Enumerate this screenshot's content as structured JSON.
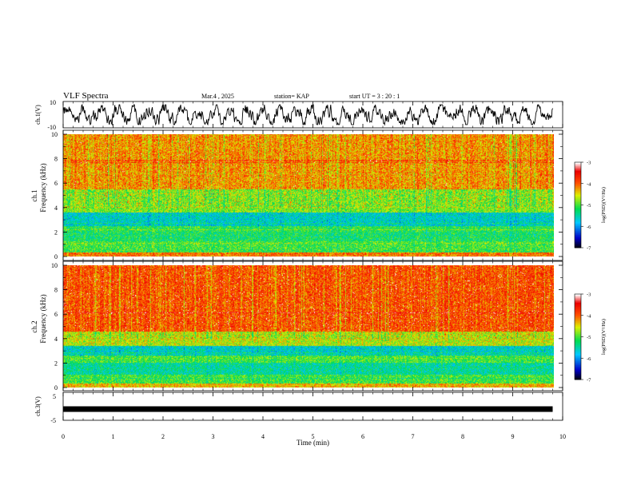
{
  "header": {
    "title": "VLF Spectra",
    "date": "Mar.4 , 2025",
    "station": "station= KAP",
    "start_ut": "start UT = 3 : 20 : 1"
  },
  "chart_data": [
    {
      "id": "ch1_waveform",
      "type": "line",
      "ylabel": "ch.1(V)",
      "ylim": [
        -10,
        10
      ],
      "yticks": [
        "10",
        "-10"
      ],
      "x_range_min": [
        0,
        9.8
      ],
      "description_values": "noisy waveform oscillating roughly between -7 and +7 V",
      "color": "#000000"
    },
    {
      "id": "ch1_spectrogram",
      "type": "heatmap",
      "ylabel": "ch.1\nFrequency (kHz)",
      "ylim": [
        0,
        10
      ],
      "yticks": [
        "0",
        "2",
        "4",
        "6",
        "8",
        "10"
      ],
      "x_range_min": [
        0,
        9.8
      ],
      "bands": [
        {
          "from": 0.0,
          "to": 0.3,
          "level": -4.0
        },
        {
          "from": 0.3,
          "to": 1.2,
          "level": -5.0
        },
        {
          "from": 1.2,
          "to": 2.0,
          "level": -5.2
        },
        {
          "from": 2.0,
          "to": 2.5,
          "level": -5.1
        },
        {
          "from": 2.5,
          "to": 3.6,
          "level": -5.6
        },
        {
          "from": 3.6,
          "to": 5.5,
          "level": -4.8
        },
        {
          "from": 5.5,
          "to": 10.0,
          "level": -4.2
        }
      ],
      "colorbar": {
        "label": "log(PSD)(V²/Hz)",
        "min": -7,
        "max": -3,
        "ticks": [
          "-3",
          "-4",
          "-5",
          "-6",
          "-7"
        ]
      }
    },
    {
      "id": "ch2_spectrogram",
      "type": "heatmap",
      "ylabel": "ch.2\nFrequency (kHz)",
      "ylim": [
        0,
        10
      ],
      "yticks": [
        "0",
        "2",
        "4",
        "6",
        "8",
        "10"
      ],
      "x_range_min": [
        0,
        9.8
      ],
      "bands": [
        {
          "from": 0.0,
          "to": 0.3,
          "level": -4.3
        },
        {
          "from": 0.3,
          "to": 1.0,
          "level": -5.0
        },
        {
          "from": 1.0,
          "to": 2.0,
          "level": -5.4
        },
        {
          "from": 2.0,
          "to": 2.6,
          "level": -5.0
        },
        {
          "from": 2.6,
          "to": 3.4,
          "level": -5.6
        },
        {
          "from": 3.4,
          "to": 4.6,
          "level": -4.6
        },
        {
          "from": 4.6,
          "to": 10.0,
          "level": -3.9
        }
      ],
      "colorbar": {
        "label": "log(PSD)(V²/Hz)",
        "min": -7,
        "max": -3,
        "ticks": [
          "-3",
          "-4",
          "-5",
          "-6",
          "-7"
        ]
      }
    },
    {
      "id": "ch3_waveform",
      "type": "line",
      "ylabel": "ch.3(V)",
      "ylim": [
        -5,
        5
      ],
      "yticks": [
        "5",
        "-5"
      ],
      "x_range_min": [
        0,
        9.8
      ],
      "level_v": -1.0,
      "color": "#000000"
    }
  ],
  "xaxis": {
    "xlabel": "Time (min)",
    "xlim": [
      0,
      10
    ],
    "ticks": [
      "0",
      "1",
      "2",
      "3",
      "4",
      "5",
      "6",
      "7",
      "8",
      "9",
      "10"
    ]
  }
}
